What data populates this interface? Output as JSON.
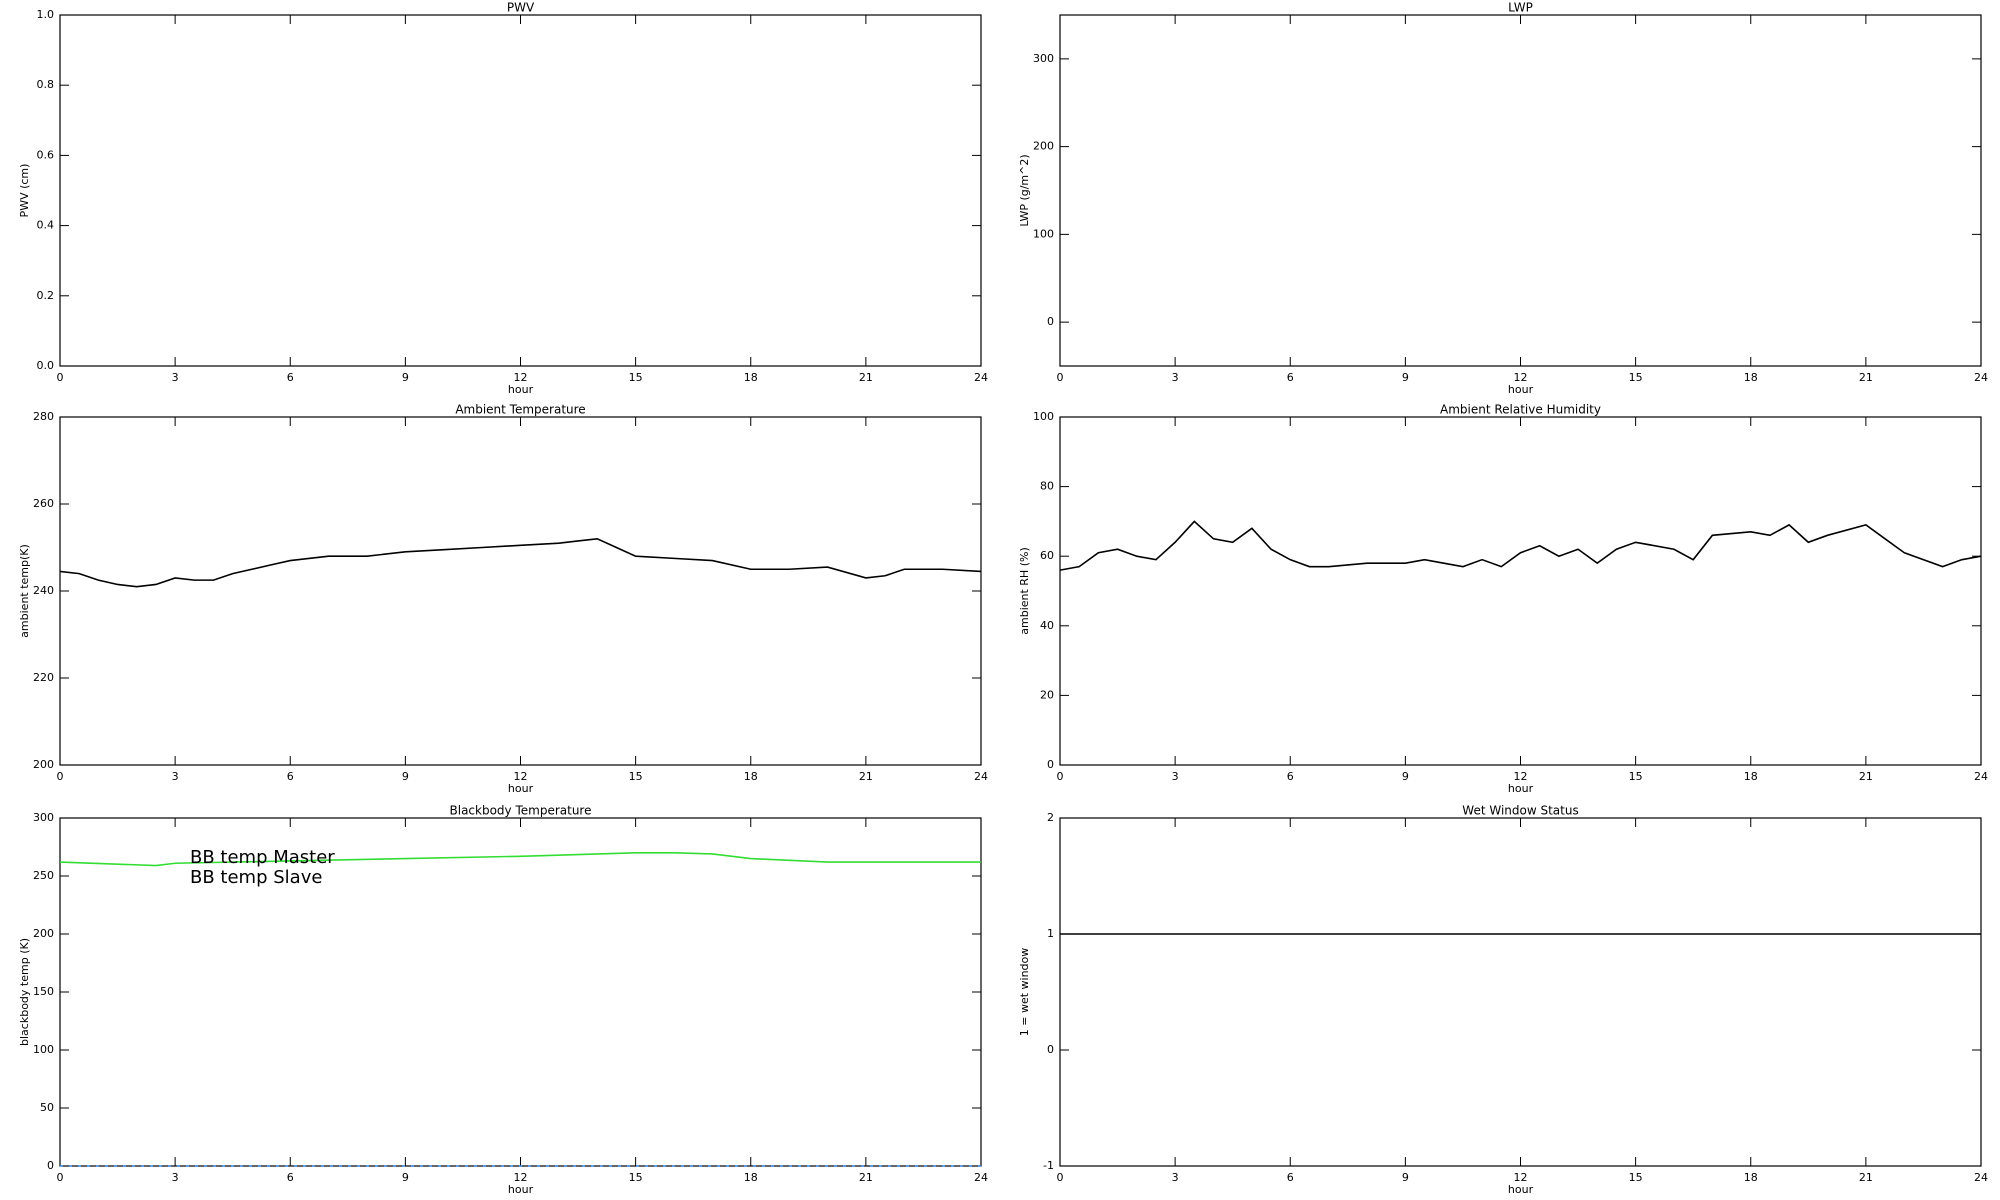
{
  "chart_data": [
    {
      "type": "line",
      "title": "PWV",
      "xlabel": "hour",
      "ylabel": "PWV (cm)",
      "xlim": [
        0,
        24
      ],
      "xticks": [
        0,
        3,
        6,
        9,
        12,
        15,
        18,
        21,
        24
      ],
      "ylim": [
        0,
        1
      ],
      "yticks": [
        {
          "value": 0,
          "label": "0.0"
        },
        0.2,
        0.4,
        0.6,
        0.8,
        {
          "value": 1,
          "label": "1.0"
        }
      ]
    },
    {
      "type": "line",
      "title": "LWP",
      "xlabel": "hour",
      "ylabel": "LWP (g/m^2)",
      "xlim": [
        0,
        24
      ],
      "xticks": [
        0,
        3,
        6,
        9,
        12,
        15,
        18,
        21,
        24
      ],
      "ylim": [
        -50,
        350
      ],
      "yticks": [
        0,
        100,
        200,
        300
      ]
    },
    {
      "type": "line",
      "title": "Ambient Temperature",
      "xlabel": "hour",
      "ylabel": "ambient temp(K)",
      "xlim": [
        0,
        24
      ],
      "xticks": [
        0,
        3,
        6,
        9,
        12,
        15,
        18,
        21,
        24
      ],
      "ylim": [
        200,
        280
      ],
      "yticks": [
        200,
        220,
        240,
        260,
        280
      ],
      "x": [
        0,
        0.5,
        1,
        1.5,
        2,
        2.5,
        3,
        3.5,
        4,
        4.5,
        5,
        5.5,
        6,
        7,
        8,
        9,
        10,
        11,
        12,
        13,
        13.5,
        14,
        14.5,
        15,
        16,
        17,
        18,
        19,
        20,
        21,
        21.5,
        22,
        23,
        24
      ],
      "series": [
        {
          "color": "#000000",
          "values": [
            244.5,
            244,
            242.5,
            241.5,
            241,
            241.5,
            243,
            242.5,
            242.5,
            244,
            245,
            246,
            247,
            248,
            248,
            249,
            249.5,
            250,
            250.5,
            251,
            251.5,
            252,
            250,
            248,
            247.5,
            247,
            245,
            245,
            245.5,
            243,
            243.5,
            245,
            245,
            244.5
          ]
        }
      ]
    },
    {
      "type": "line",
      "title": "Ambient Relative Humidity",
      "xlabel": "hour",
      "ylabel": "ambient RH (%)",
      "xlim": [
        0,
        24
      ],
      "xticks": [
        0,
        3,
        6,
        9,
        12,
        15,
        18,
        21,
        24
      ],
      "ylim": [
        0,
        100
      ],
      "yticks": [
        0,
        20,
        40,
        60,
        80,
        100
      ],
      "x": [
        0,
        0.5,
        1,
        1.5,
        2,
        2.5,
        3,
        3.5,
        4,
        4.5,
        5,
        5.5,
        6,
        6.5,
        7,
        8,
        9,
        9.5,
        10,
        10.5,
        11,
        11.5,
        12,
        12.5,
        13,
        13.5,
        14,
        14.5,
        15,
        16,
        16.5,
        17,
        18,
        18.5,
        19,
        19.5,
        20,
        21,
        21.5,
        22,
        23,
        23.5,
        24
      ],
      "series": [
        {
          "color": "#000000",
          "values": [
            56,
            57,
            61,
            62,
            60,
            59,
            64,
            70,
            65,
            64,
            68,
            62,
            59,
            57,
            57,
            58,
            58,
            59,
            58,
            57,
            59,
            57,
            61,
            63,
            60,
            62,
            58,
            62,
            64,
            62,
            59,
            66,
            67,
            66,
            69,
            64,
            66,
            69,
            65,
            61,
            57,
            59,
            60
          ]
        }
      ]
    },
    {
      "type": "line",
      "title": "Blackbody Temperature",
      "xlabel": "hour",
      "ylabel": "blackbody temp (K)",
      "xlim": [
        0,
        24
      ],
      "xticks": [
        0,
        3,
        6,
        9,
        12,
        15,
        18,
        21,
        24
      ],
      "ylim": [
        0,
        300
      ],
      "yticks": [
        0,
        50,
        100,
        150,
        200,
        250,
        300
      ],
      "legend": "upper left",
      "x": [
        0,
        2.5,
        3,
        6,
        9,
        12,
        15,
        16,
        17,
        18,
        20,
        21,
        24
      ],
      "series": [
        {
          "name": "BB temp Master",
          "color": "#3a8ee6",
          "style": "dashed",
          "values": [
            0,
            0,
            0,
            0,
            0,
            0,
            0,
            0,
            0,
            0,
            0,
            0,
            0
          ]
        },
        {
          "name": "BB temp Slave",
          "color": "#33dd33",
          "values": [
            262,
            259,
            261,
            263,
            265,
            267,
            270,
            270,
            269,
            265,
            262,
            262,
            262
          ]
        }
      ]
    },
    {
      "type": "line",
      "title": "Wet Window Status",
      "xlabel": "hour",
      "ylabel": "1 = wet window",
      "xlim": [
        0,
        24
      ],
      "xticks": [
        0,
        3,
        6,
        9,
        12,
        15,
        18,
        21,
        24
      ],
      "ylim": [
        -1,
        2
      ],
      "yticks": [
        -1,
        0,
        1,
        2
      ],
      "x": [
        0,
        24
      ],
      "series": [
        {
          "color": "#000000",
          "values": [
            1,
            1
          ]
        }
      ]
    }
  ]
}
